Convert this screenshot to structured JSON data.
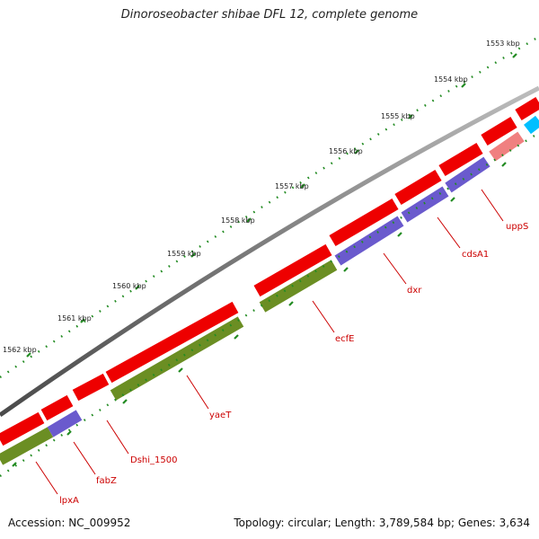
{
  "title": "Dinoroseobacter shibae DFL 12, complete genome",
  "footer": {
    "accession": "Accession: NC_009952",
    "summary": "Topology: circular; Length: 3,789,584 bp; Genes: 3,634"
  },
  "ruler": {
    "labels": [
      "1553 kbp",
      "1554 kbp",
      "1555 kbp",
      "1556 kbp",
      "1557 kbp",
      "1558 kbp",
      "1559 kbp",
      "1560 kbp",
      "1561 kbp",
      "1562 kbp"
    ]
  },
  "genes": [
    {
      "name": "uppS"
    },
    {
      "name": "cdsA1"
    },
    {
      "name": "dxr"
    },
    {
      "name": "ecfE"
    },
    {
      "name": "yaeT"
    },
    {
      "name": "Dshi_1500"
    },
    {
      "name": "fabZ"
    },
    {
      "name": "lpxA"
    }
  ],
  "colors": {
    "backbone": "#7a7a7a",
    "gene_red": "#ee0000",
    "gene_pink": "#f08080",
    "gene_purple": "#6a5acd",
    "gene_olive": "#6b8e23",
    "gene_cyan": "#00bfff",
    "tick_green": "#228b22",
    "label_red": "#cc0000"
  }
}
